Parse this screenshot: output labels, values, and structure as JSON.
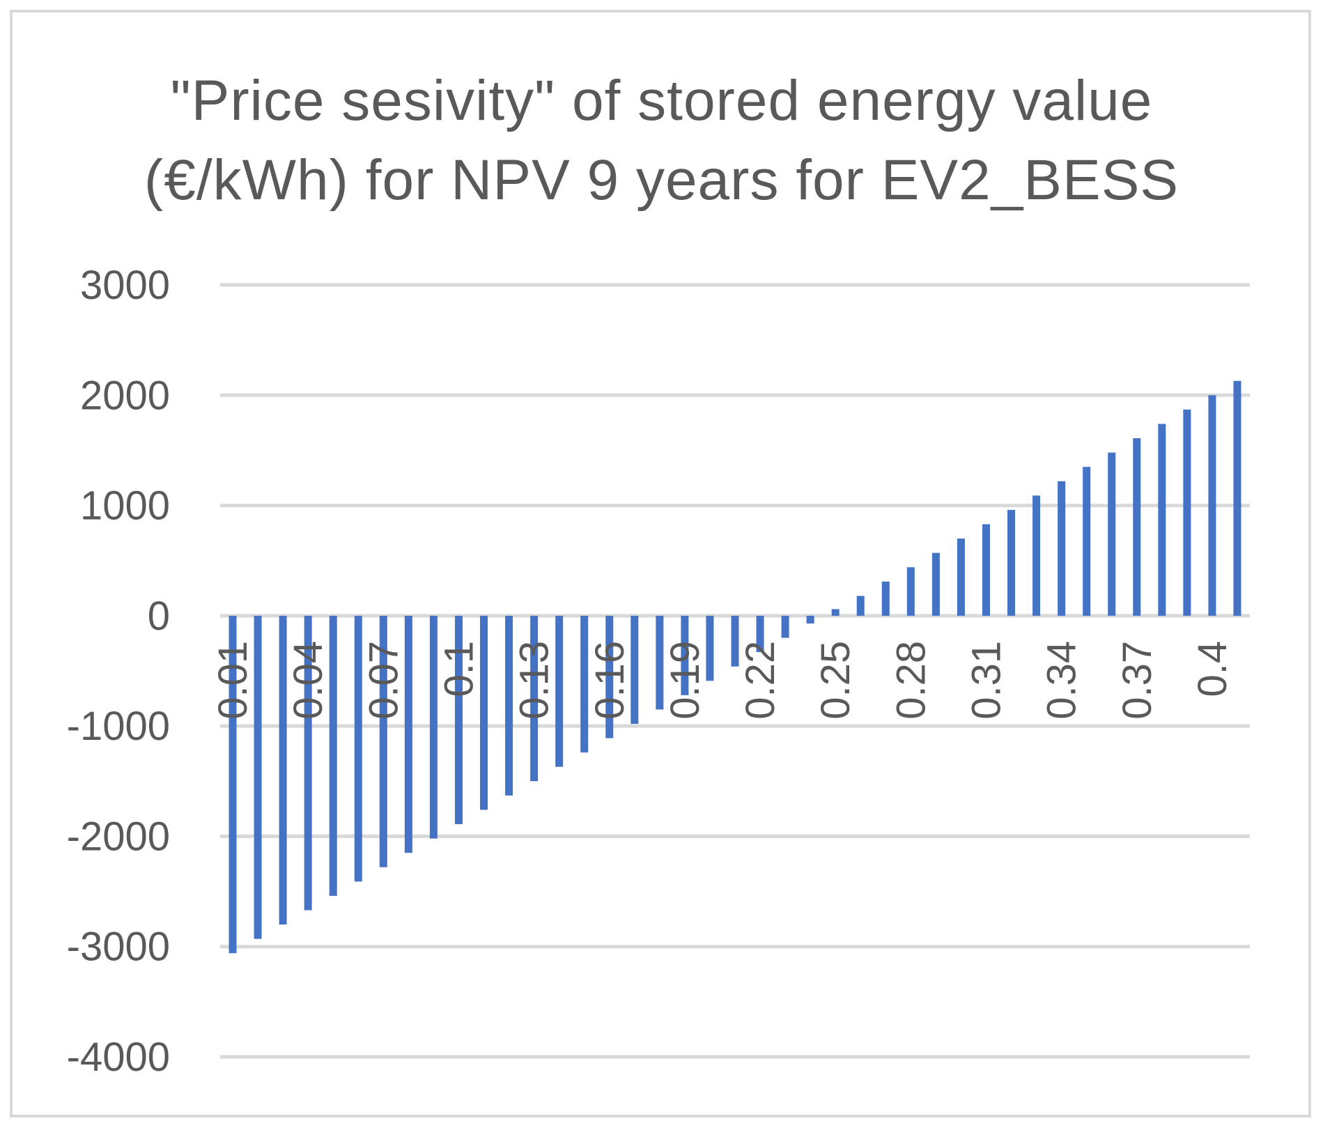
{
  "chart_data": {
    "type": "bar",
    "title_lines": [
      "\"Price sesivity\" of stored energy value",
      "(€/kWh) for NPV 9 years for EV2_BESS"
    ],
    "xlabel": "",
    "ylabel": "",
    "ylim": [
      -4000,
      3000
    ],
    "yticks": [
      3000,
      2000,
      1000,
      0,
      -1000,
      -2000,
      -3000,
      -4000
    ],
    "grid": true,
    "legend": "none",
    "bar_color": "#4472c4",
    "grid_color": "#d9d9d9",
    "categories": [
      "0.01",
      "0.02",
      "0.03",
      "0.04",
      "0.05",
      "0.06",
      "0.07",
      "0.08",
      "0.09",
      "0.1",
      "0.11",
      "0.12",
      "0.13",
      "0.14",
      "0.15",
      "0.16",
      "0.17",
      "0.18",
      "0.19",
      "0.2",
      "0.21",
      "0.22",
      "0.23",
      "0.24",
      "0.25",
      "0.26",
      "0.27",
      "0.28",
      "0.29",
      "0.3",
      "0.31",
      "0.32",
      "0.33",
      "0.34",
      "0.35",
      "0.36",
      "0.37",
      "0.38",
      "0.39",
      "0.4",
      "0.41"
    ],
    "tick_labels_shown": [
      "0.01",
      "0.04",
      "0.07",
      "0.1",
      "0.13",
      "0.16",
      "0.19",
      "0.22",
      "0.25",
      "0.28",
      "0.31",
      "0.34",
      "0.37",
      "0.4"
    ],
    "values": [
      -3060,
      -2930,
      -2800,
      -2670,
      -2540,
      -2410,
      -2280,
      -2150,
      -2020,
      -1890,
      -1760,
      -1630,
      -1500,
      -1370,
      -1240,
      -1110,
      -980,
      -850,
      -720,
      -590,
      -460,
      -330,
      -200,
      -70,
      60,
      180,
      310,
      440,
      570,
      700,
      830,
      960,
      1090,
      1220,
      1350,
      1480,
      1610,
      1740,
      1870,
      2000,
      2130
    ]
  }
}
